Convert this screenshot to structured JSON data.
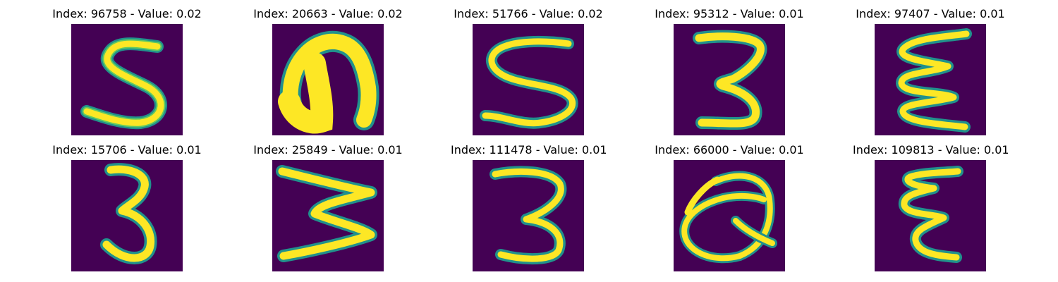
{
  "colors": {
    "background": "#440154",
    "stroke_core": "#fde725",
    "stroke_edge": "#21918c",
    "stroke_mid": "#5ec962"
  },
  "panels": [
    {
      "title": "Index: 96758 - Value: 0.02",
      "glyph": "5"
    },
    {
      "title": "Index: 20663 - Value: 0.02",
      "glyph": "n"
    },
    {
      "title": "Index: 51766 - Value: 0.02",
      "glyph": "5"
    },
    {
      "title": "Index: 95312 - Value: 0.01",
      "glyph": "3"
    },
    {
      "title": "Index: 97407 - Value: 0.01",
      "glyph": "ε"
    },
    {
      "title": "Index: 15706 - Value: 0.01",
      "glyph": "3"
    },
    {
      "title": "Index: 25849 - Value: 0.01",
      "glyph": "3"
    },
    {
      "title": "Index: 111478 - Value: 0.01",
      "glyph": "3"
    },
    {
      "title": "Index: 66000 - Value: 0.01",
      "glyph": "Q"
    },
    {
      "title": "Index: 109813 - Value: 0.01",
      "glyph": "ε"
    }
  ]
}
